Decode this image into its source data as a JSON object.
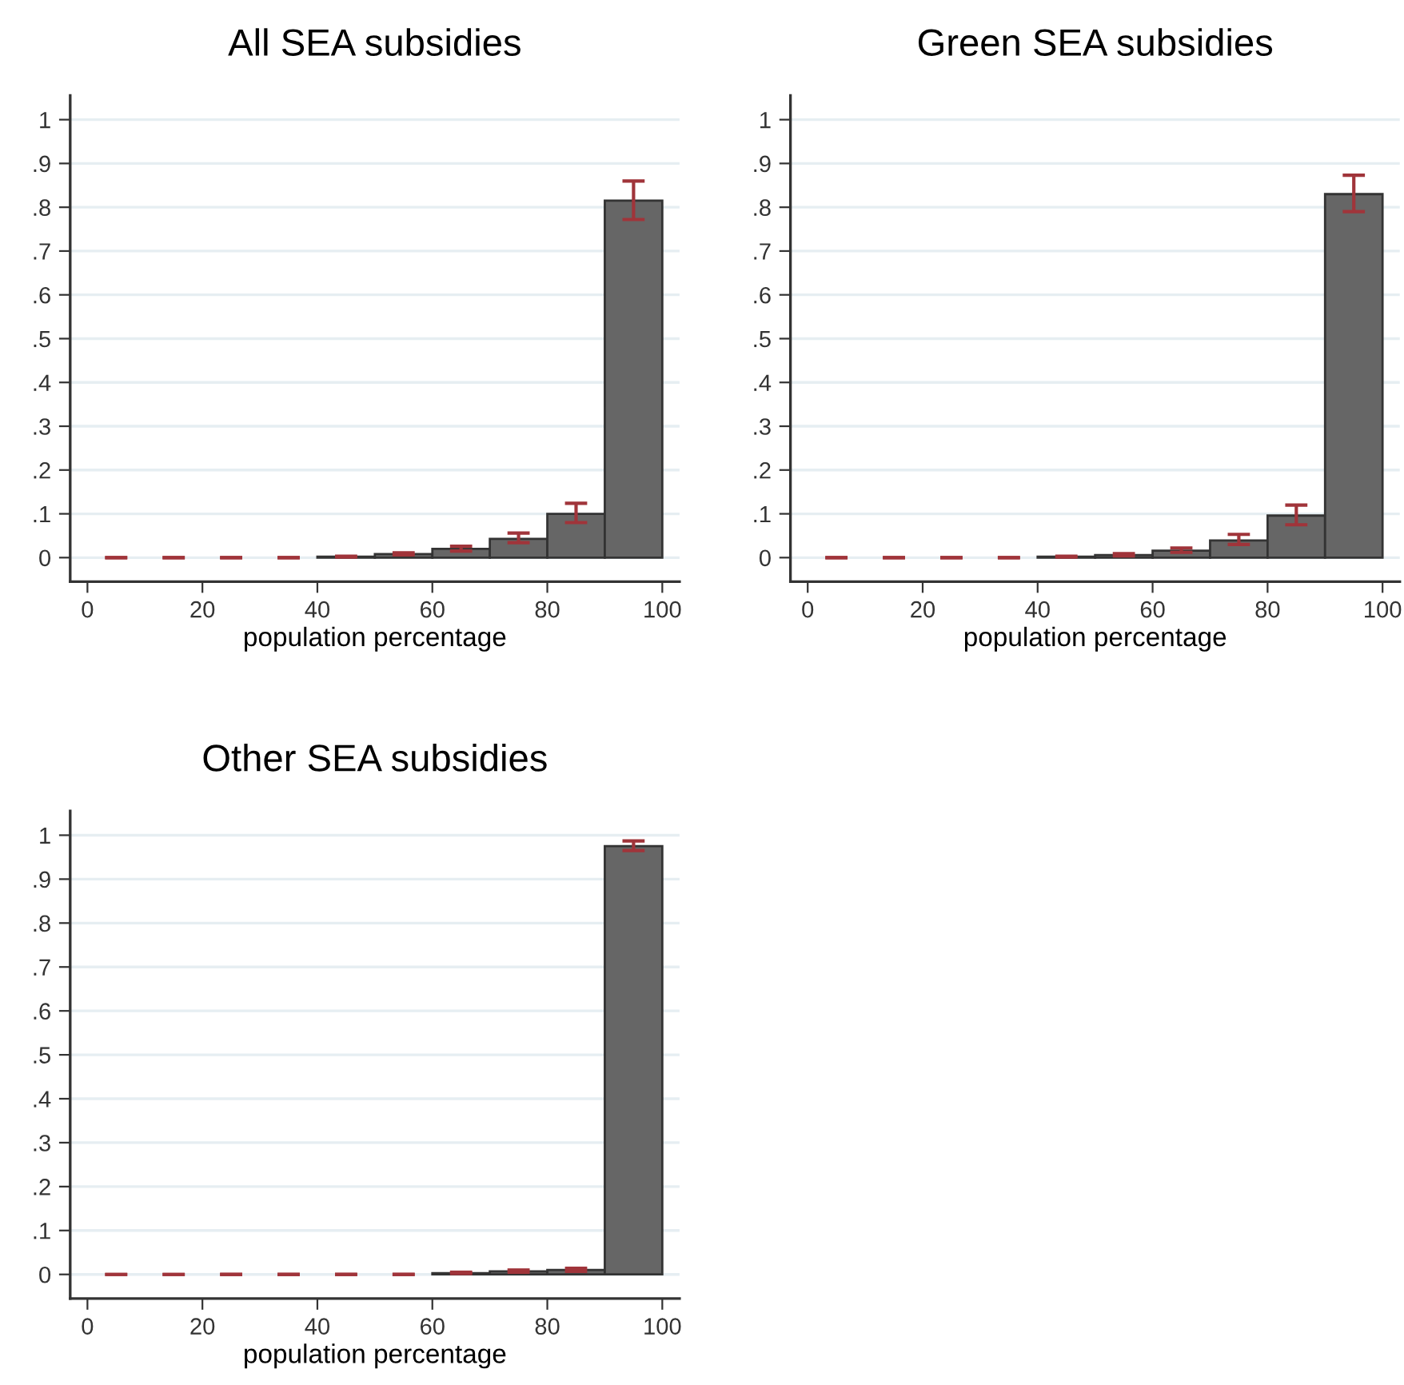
{
  "chart_data": [
    {
      "type": "histogram",
      "title": "All SEA subsidies",
      "xlabel": "population percentage",
      "bins": [
        0,
        10,
        20,
        30,
        40,
        50,
        60,
        70,
        80,
        90,
        100
      ],
      "values": [
        0,
        0,
        0,
        0,
        0.002,
        0.008,
        0.02,
        0.043,
        0.1,
        0.815
      ],
      "errors": [
        [
          0,
          0
        ],
        [
          0,
          0
        ],
        [
          0,
          0
        ],
        [
          0,
          0
        ],
        [
          0.001,
          0.003
        ],
        [
          0.006,
          0.011
        ],
        [
          0.015,
          0.026
        ],
        [
          0.034,
          0.056
        ],
        [
          0.08,
          0.124
        ],
        [
          0.772,
          0.86
        ]
      ],
      "color": "#666666",
      "xlim": [
        -3,
        103
      ],
      "ylim": [
        -0.055,
        1.055
      ],
      "xticks": [
        0,
        20,
        40,
        60,
        80,
        100
      ],
      "yticks": [
        0,
        {
          "value": 0.1,
          "label": ".1"
        },
        {
          "value": 0.2,
          "label": ".2"
        },
        {
          "value": 0.3,
          "label": ".3"
        },
        {
          "value": 0.4,
          "label": ".4"
        },
        {
          "value": 0.5,
          "label": ".5"
        },
        {
          "value": 0.6,
          "label": ".6"
        },
        {
          "value": 0.7,
          "label": ".7"
        },
        {
          "value": 0.8,
          "label": ".8"
        },
        {
          "value": 0.9,
          "label": ".9"
        },
        1
      ],
      "grid": "y",
      "legend": false
    },
    {
      "type": "histogram",
      "title": "Green SEA subsidies",
      "xlabel": "population percentage",
      "bins": [
        0,
        10,
        20,
        30,
        40,
        50,
        60,
        70,
        80,
        90,
        100
      ],
      "values": [
        0,
        0,
        0,
        0,
        0.002,
        0.006,
        0.016,
        0.039,
        0.096,
        0.83
      ],
      "errors": [
        [
          0,
          0
        ],
        [
          0,
          0
        ],
        [
          0,
          0
        ],
        [
          0,
          0
        ],
        [
          0.001,
          0.003
        ],
        [
          0.004,
          0.009
        ],
        [
          0.012,
          0.022
        ],
        [
          0.03,
          0.053
        ],
        [
          0.075,
          0.12
        ],
        [
          0.79,
          0.873
        ]
      ],
      "color": "#666666",
      "xlim": [
        -3,
        103
      ],
      "ylim": [
        -0.055,
        1.055
      ],
      "xticks": [
        0,
        20,
        40,
        60,
        80,
        100
      ],
      "yticks": [
        0,
        {
          "value": 0.1,
          "label": ".1"
        },
        {
          "value": 0.2,
          "label": ".2"
        },
        {
          "value": 0.3,
          "label": ".3"
        },
        {
          "value": 0.4,
          "label": ".4"
        },
        {
          "value": 0.5,
          "label": ".5"
        },
        {
          "value": 0.6,
          "label": ".6"
        },
        {
          "value": 0.7,
          "label": ".7"
        },
        {
          "value": 0.8,
          "label": ".8"
        },
        {
          "value": 0.9,
          "label": ".9"
        },
        1
      ],
      "grid": "y",
      "legend": false
    },
    {
      "type": "histogram",
      "title": "Other SEA subsidies",
      "xlabel": "population percentage",
      "bins": [
        0,
        10,
        20,
        30,
        40,
        50,
        60,
        70,
        80,
        90,
        100
      ],
      "values": [
        0,
        0,
        0,
        0,
        0,
        0,
        0.003,
        0.007,
        0.01,
        0.975
      ],
      "errors": [
        [
          0,
          0
        ],
        [
          0,
          0
        ],
        [
          0,
          0
        ],
        [
          0,
          0
        ],
        [
          0,
          0
        ],
        [
          0,
          0
        ],
        [
          0.002,
          0.005
        ],
        [
          0.005,
          0.01
        ],
        [
          0.007,
          0.014
        ],
        [
          0.965,
          0.987
        ]
      ],
      "color": "#666666",
      "xlim": [
        -3,
        103
      ],
      "ylim": [
        -0.055,
        1.055
      ],
      "xticks": [
        0,
        20,
        40,
        60,
        80,
        100
      ],
      "yticks": [
        0,
        {
          "value": 0.1,
          "label": ".1"
        },
        {
          "value": 0.2,
          "label": ".2"
        },
        {
          "value": 0.3,
          "label": ".3"
        },
        {
          "value": 0.4,
          "label": ".4"
        },
        {
          "value": 0.5,
          "label": ".5"
        },
        {
          "value": 0.6,
          "label": ".6"
        },
        {
          "value": 0.7,
          "label": ".7"
        },
        {
          "value": 0.8,
          "label": ".8"
        },
        {
          "value": 0.9,
          "label": ".9"
        },
        1
      ],
      "grid": "y",
      "legend": false
    }
  ]
}
